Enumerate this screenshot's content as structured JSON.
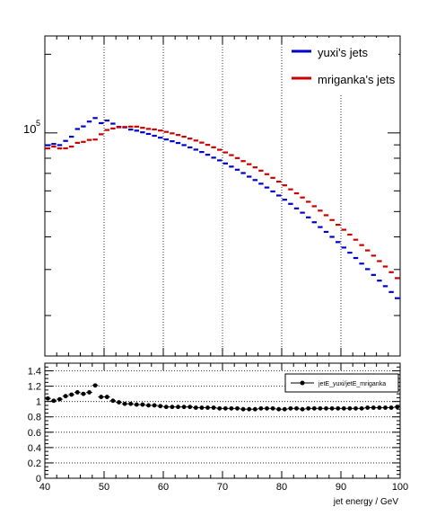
{
  "chart_data": [
    {
      "type": "line",
      "title": "",
      "xlabel": "",
      "ylabel": "",
      "xlim": [
        40,
        100
      ],
      "log_y": true,
      "y_tick_label": {
        "base": "10",
        "exp": "5"
      },
      "grid": "vertical dotted",
      "legend_placement": "top-right",
      "x": [
        40.5,
        41.5,
        42.5,
        43.5,
        44.5,
        45.5,
        46.5,
        47.5,
        48.5,
        49.5,
        50.5,
        51.5,
        52.5,
        53.5,
        54.5,
        55.5,
        56.5,
        57.5,
        58.5,
        59.5,
        60.5,
        61.5,
        62.5,
        63.5,
        64.5,
        65.5,
        66.5,
        67.5,
        68.5,
        69.5,
        70.5,
        71.5,
        72.5,
        73.5,
        74.5,
        75.5,
        76.5,
        77.5,
        78.5,
        79.5,
        80.5,
        81.5,
        82.5,
        83.5,
        84.5,
        85.5,
        86.5,
        87.5,
        88.5,
        89.5,
        90.5,
        91.5,
        92.5,
        93.5,
        94.5,
        95.5,
        96.5,
        97.5,
        98.5,
        99.5
      ],
      "series": [
        {
          "name": "yuxi's jets",
          "color": "#0000cc",
          "values": [
            89700,
            90700,
            89800,
            93200,
            96700,
            103500,
            105900,
            110500,
            114000,
            109000,
            111500,
            108500,
            105500,
            105000,
            103000,
            102000,
            100500,
            99100,
            97500,
            95900,
            94400,
            92900,
            91500,
            89800,
            88000,
            86300,
            84500,
            82500,
            80400,
            78500,
            76400,
            74300,
            72300,
            70200,
            68000,
            66000,
            63900,
            61800,
            59700,
            57600,
            55500,
            53500,
            51400,
            49500,
            47500,
            45500,
            43600,
            41800,
            40000,
            38200,
            36400,
            34800,
            33200,
            31600,
            30100,
            28600,
            27200,
            25900,
            24600,
            23300
          ]
        },
        {
          "name": "mriganka's jets",
          "color": "#cc0000",
          "values": [
            87200,
            88600,
            87200,
            87300,
            88600,
            91600,
            92400,
            94000,
            94300,
            98800,
            102600,
            104000,
            105100,
            105400,
            105700,
            105700,
            104600,
            103600,
            103100,
            102100,
            100900,
            99600,
            98200,
            96700,
            95100,
            93500,
            91800,
            90000,
            88100,
            86200,
            84200,
            82200,
            80100,
            78000,
            75900,
            73800,
            71700,
            69500,
            67300,
            65100,
            63000,
            60800,
            58700,
            56600,
            54500,
            52400,
            50400,
            48400,
            46400,
            44500,
            42600,
            40800,
            39000,
            37200,
            35500,
            33900,
            32300,
            30800,
            29300,
            27800
          ]
        }
      ]
    },
    {
      "type": "scatter",
      "title": "",
      "xlabel": "jet energy / GeV",
      "ylabel": "",
      "xlim": [
        40,
        100
      ],
      "ylim": [
        0,
        1.5
      ],
      "x_ticks": [
        "40",
        "50",
        "60",
        "70",
        "80",
        "90",
        "100"
      ],
      "y_ticks": [
        "0",
        "0.2",
        "0.4",
        "0.6",
        "0.8",
        "1",
        "1.2",
        "1.4"
      ],
      "grid": "horizontal dotted",
      "legend_placement": "top-right",
      "x": [
        40.5,
        41.5,
        42.5,
        43.5,
        44.5,
        45.5,
        46.5,
        47.5,
        48.5,
        49.5,
        50.5,
        51.5,
        52.5,
        53.5,
        54.5,
        55.5,
        56.5,
        57.5,
        58.5,
        59.5,
        60.5,
        61.5,
        62.5,
        63.5,
        64.5,
        65.5,
        66.5,
        67.5,
        68.5,
        69.5,
        70.5,
        71.5,
        72.5,
        73.5,
        74.5,
        75.5,
        76.5,
        77.5,
        78.5,
        79.5,
        80.5,
        81.5,
        82.5,
        83.5,
        84.5,
        85.5,
        86.5,
        87.5,
        88.5,
        89.5,
        90.5,
        91.5,
        92.5,
        93.5,
        94.5,
        95.5,
        96.5,
        97.5,
        98.5,
        99.5
      ],
      "series": [
        {
          "name": "jetE_yuxi/jetE_mriganka",
          "color": "#000000",
          "values": [
            1.04,
            1.01,
            1.03,
            1.07,
            1.09,
            1.12,
            1.1,
            1.12,
            1.21,
            1.06,
            1.06,
            1.01,
            0.99,
            0.97,
            0.97,
            0.96,
            0.96,
            0.95,
            0.95,
            0.94,
            0.93,
            0.93,
            0.93,
            0.93,
            0.93,
            0.92,
            0.92,
            0.92,
            0.92,
            0.91,
            0.91,
            0.91,
            0.91,
            0.9,
            0.9,
            0.9,
            0.91,
            0.91,
            0.91,
            0.9,
            0.9,
            0.91,
            0.91,
            0.9,
            0.91,
            0.91,
            0.91,
            0.91,
            0.91,
            0.91,
            0.91,
            0.91,
            0.91,
            0.91,
            0.92,
            0.92,
            0.92,
            0.92,
            0.92,
            0.93
          ]
        }
      ]
    }
  ]
}
